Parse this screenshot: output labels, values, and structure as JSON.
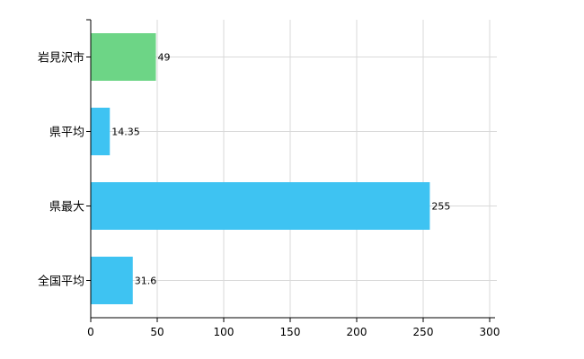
{
  "chart_data": {
    "type": "bar",
    "orientation": "horizontal",
    "categories": [
      "岩見沢市",
      "県平均",
      "県最大",
      "全国平均"
    ],
    "values": [
      49,
      14.35,
      255,
      31.6
    ],
    "value_labels": [
      "49",
      "14.35",
      "255",
      "31.6"
    ],
    "bar_colors": [
      "#6dd586",
      "#3ec3f2",
      "#3ec3f2",
      "#3ec3f2"
    ],
    "xlim": [
      0,
      300
    ],
    "x_ticks": [
      0,
      50,
      100,
      150,
      200,
      250,
      300
    ],
    "grid": true,
    "legend": "none"
  },
  "colors": {
    "highlight": "#6dd586",
    "bar": "#3ec3f2",
    "grid": "#d9d9d9",
    "axis": "#000000"
  }
}
